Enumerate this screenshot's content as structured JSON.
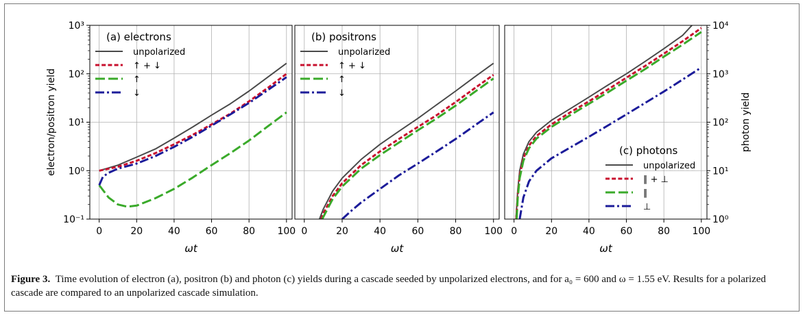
{
  "caption": {
    "label": "Figure 3.",
    "text": "Time evolution of electron (a), positron (b) and photon (c) yields during a cascade seeded by unpolarized electrons, and for a₀ = 600 and ω = 1.55 eV. Results for a polarized cascade are compared to an unpolarized cascade simulation."
  },
  "colors": {
    "unpolarized": "#4a4a4a",
    "sum": "#c8102e",
    "up_par": "#3aaa2a",
    "down_perp": "#1c1c9a",
    "grid": "#b0b0b0"
  },
  "chart_data": [
    {
      "type": "line",
      "title": "(a) electrons",
      "xlabel": "ωt",
      "ylabel": "electron/positron yield",
      "xlim": [
        -5,
        103
      ],
      "ylim": [
        0.1,
        1000
      ],
      "yscale": "log",
      "grid": true,
      "legend": "top-left",
      "xticks": [
        "0",
        "20",
        "40",
        "60",
        "80",
        "100"
      ],
      "yticks": [
        "10⁻¹",
        "10⁰",
        "10¹",
        "10²",
        "10³"
      ],
      "series": [
        {
          "name": "unpolarized",
          "style": "solid",
          "color_key": "unpolarized",
          "x": [
            0,
            10,
            20,
            30,
            40,
            50,
            60,
            70,
            80,
            90,
            100
          ],
          "y": [
            1.0,
            1.3,
            1.9,
            2.8,
            4.7,
            8.0,
            14,
            24,
            44,
            85,
            165
          ]
        },
        {
          "name": "↑ + ↓",
          "style": "dotted",
          "color_key": "sum",
          "x": [
            0,
            10,
            20,
            30,
            40,
            50,
            60,
            70,
            80,
            90,
            100
          ],
          "y": [
            1.0,
            1.2,
            1.6,
            2.3,
            3.5,
            5.5,
            9,
            15,
            27,
            51,
            100
          ]
        },
        {
          "name": "↑",
          "style": "dashed",
          "color_key": "up_par",
          "x": [
            0,
            5,
            10,
            15,
            20,
            30,
            40,
            50,
            60,
            70,
            80,
            90,
            100
          ],
          "y": [
            0.5,
            0.28,
            0.2,
            0.18,
            0.19,
            0.27,
            0.42,
            0.72,
            1.3,
            2.3,
            4.2,
            8.2,
            16
          ]
        },
        {
          "name": "↓",
          "style": "dashdot",
          "color_key": "down_perp",
          "x": [
            0,
            2,
            5,
            10,
            20,
            30,
            40,
            50,
            60,
            70,
            80,
            90,
            100
          ],
          "y": [
            0.5,
            0.75,
            0.9,
            1.1,
            1.4,
            2.0,
            3.1,
            5.0,
            8.5,
            14.5,
            25,
            46,
            85
          ]
        }
      ]
    },
    {
      "type": "line",
      "title": "(b) positrons",
      "xlabel": "ωt",
      "xlim": [
        -5,
        103
      ],
      "ylim": [
        0.1,
        1000
      ],
      "yscale": "log",
      "grid": true,
      "legend": "top-left",
      "xticks": [
        "0",
        "20",
        "40",
        "60",
        "80",
        "100"
      ],
      "series": [
        {
          "name": "unpolarized",
          "style": "solid",
          "color_key": "unpolarized",
          "x": [
            8,
            10,
            15,
            20,
            30,
            40,
            50,
            60,
            70,
            80,
            90,
            100
          ],
          "y": [
            0.1,
            0.16,
            0.38,
            0.7,
            1.7,
            3.5,
            6.5,
            12,
            23,
            44,
            86,
            165
          ]
        },
        {
          "name": "↑ + ↓",
          "style": "dotted",
          "color_key": "sum",
          "x": [
            9,
            10,
            15,
            20,
            30,
            40,
            50,
            60,
            70,
            80,
            90,
            100
          ],
          "y": [
            0.1,
            0.13,
            0.3,
            0.55,
            1.3,
            2.5,
            4.5,
            8,
            14,
            26,
            50,
            95
          ]
        },
        {
          "name": "↑",
          "style": "dashed",
          "color_key": "up_par",
          "x": [
            9.5,
            10,
            15,
            20,
            30,
            40,
            50,
            60,
            70,
            80,
            90,
            100
          ],
          "y": [
            0.1,
            0.11,
            0.26,
            0.47,
            1.1,
            2.1,
            3.8,
            6.8,
            12,
            22,
            42,
            80
          ]
        },
        {
          "name": "↓",
          "style": "dashdot",
          "color_key": "down_perp",
          "x": [
            20,
            25,
            30,
            40,
            50,
            60,
            70,
            80,
            90,
            100
          ],
          "y": [
            0.1,
            0.15,
            0.22,
            0.42,
            0.8,
            1.4,
            2.5,
            4.5,
            8.5,
            16
          ]
        }
      ]
    },
    {
      "type": "line",
      "title": "(c) photons",
      "xlabel": "ωt",
      "ylabel": "photon yield",
      "xlim": [
        -5,
        103
      ],
      "ylim": [
        1,
        10000
      ],
      "yscale": "log",
      "grid": true,
      "legend": "bottom-right",
      "xticks": [
        "0",
        "20",
        "40",
        "60",
        "80",
        "100"
      ],
      "yticks": [
        "10⁰",
        "10¹",
        "10²",
        "10³",
        "10⁴"
      ],
      "series": [
        {
          "name": "unpolarized",
          "style": "solid",
          "color_key": "unpolarized",
          "x": [
            1,
            2,
            3,
            5,
            8,
            12,
            20,
            30,
            40,
            50,
            60,
            70,
            80,
            90,
            95
          ],
          "y": [
            1,
            4,
            10,
            22,
            40,
            62,
            110,
            190,
            330,
            580,
            1000,
            1800,
            3300,
            6200,
            10000
          ]
        },
        {
          "name": "∥ + ⊥",
          "style": "dotted",
          "color_key": "sum",
          "x": [
            1.2,
            2,
            3,
            5,
            8,
            12,
            20,
            30,
            40,
            50,
            60,
            70,
            80,
            90,
            100
          ],
          "y": [
            1,
            3.2,
            8,
            18,
            33,
            52,
            90,
            160,
            270,
            470,
            830,
            1450,
            2600,
            4700,
            8800
          ]
        },
        {
          "name": "∥",
          "style": "dashed",
          "color_key": "up_par",
          "x": [
            1.4,
            2,
            3,
            5,
            8,
            12,
            20,
            30,
            40,
            50,
            60,
            70,
            80,
            90,
            100
          ],
          "y": [
            1,
            2.8,
            7,
            16,
            29,
            46,
            80,
            140,
            240,
            410,
            720,
            1250,
            2250,
            4000,
            7300
          ]
        },
        {
          "name": "⊥",
          "style": "dashdot",
          "color_key": "down_perp",
          "x": [
            3,
            5,
            8,
            12,
            20,
            30,
            40,
            50,
            60,
            70,
            80,
            90,
            100
          ],
          "y": [
            1,
            2.8,
            6,
            10,
            18,
            30,
            50,
            85,
            145,
            250,
            430,
            760,
            1350
          ]
        }
      ]
    }
  ]
}
